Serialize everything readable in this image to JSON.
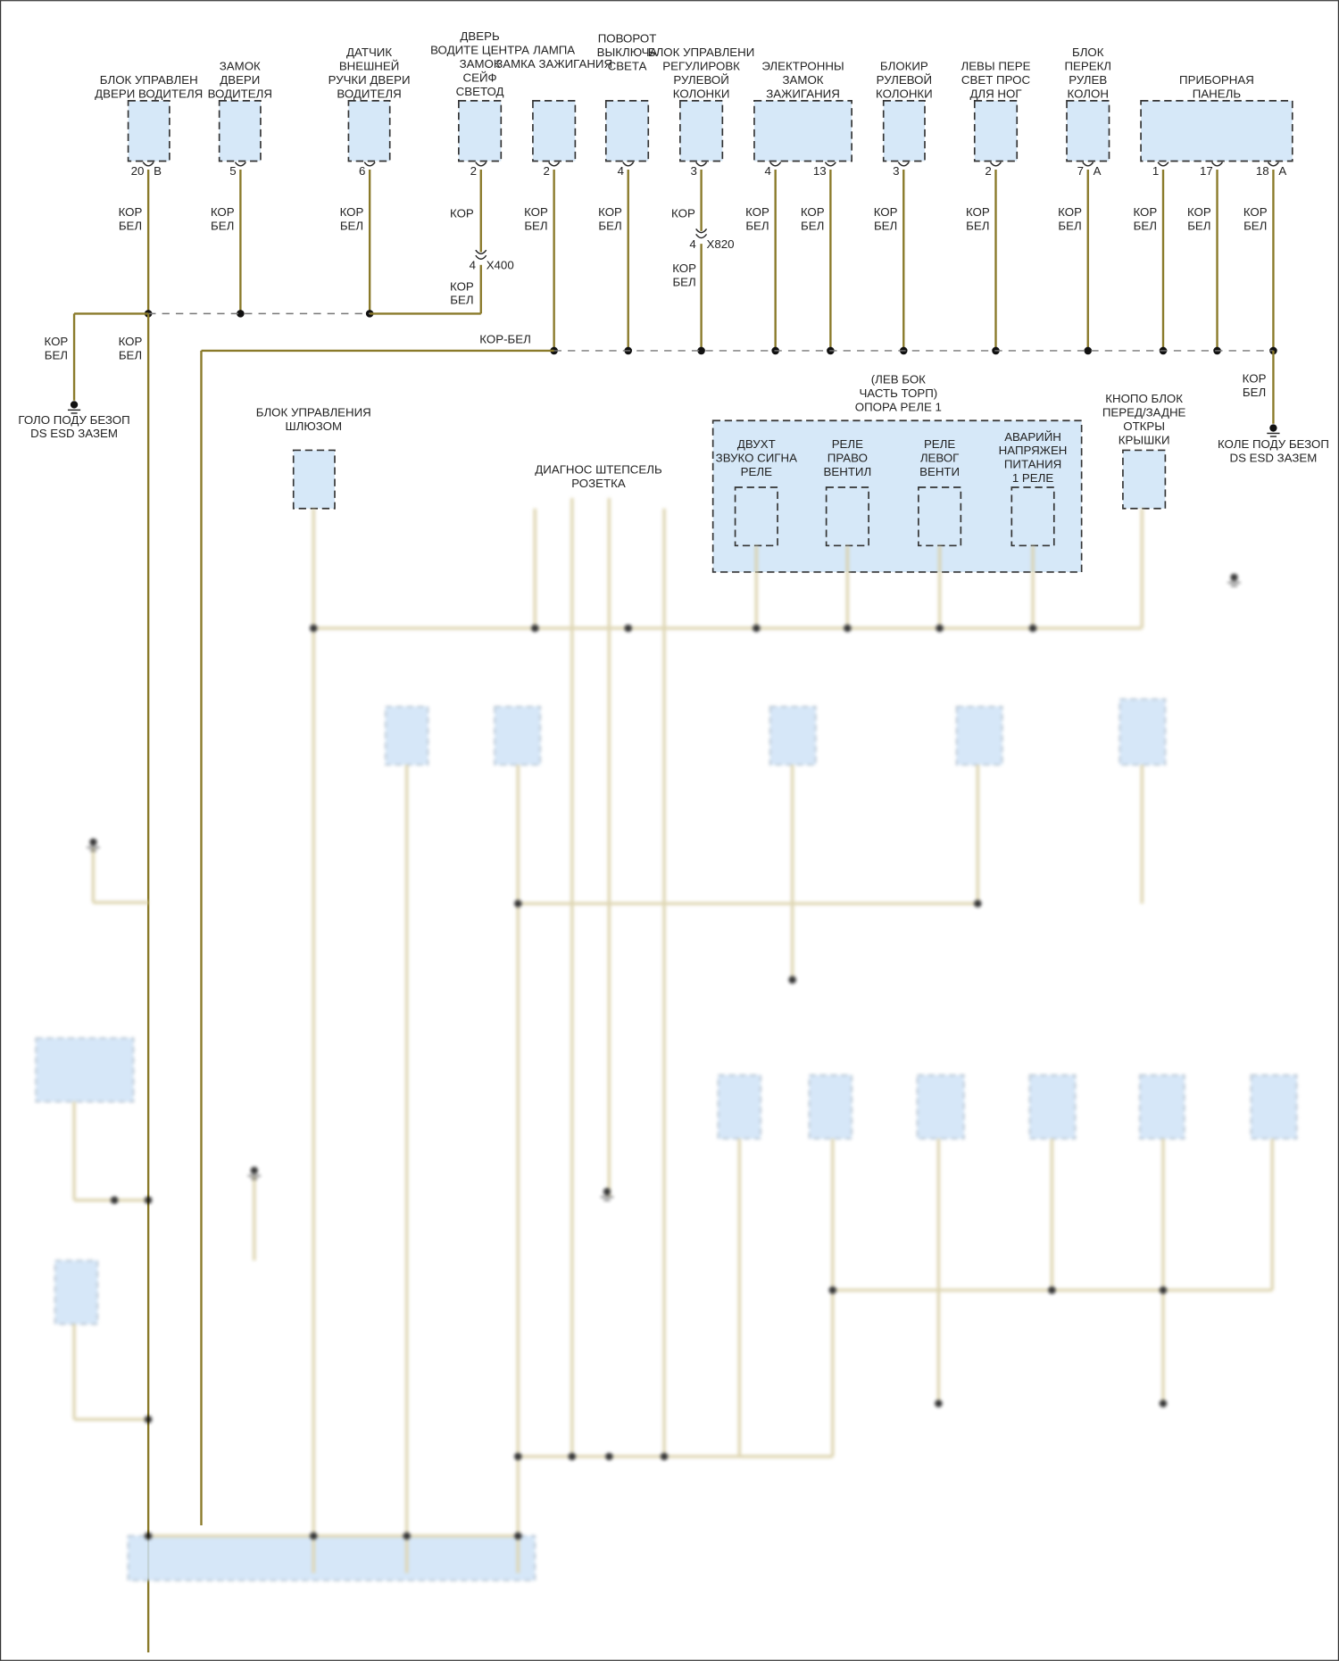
{
  "colors": {
    "wire": "#8a7a2a",
    "component_fill": "#d6e8f8",
    "background": "#ffffff"
  },
  "top_components": [
    {
      "label": [
        "БЛОК УПРАВЛЕН",
        "ДВЕРИ ВОДИТЕЛЯ"
      ],
      "pins": [
        {
          "num": "20",
          "conn": "B"
        }
      ]
    },
    {
      "label": [
        "ЗАМОК",
        "ДВЕРИ",
        "ВОДИТЕЛЯ"
      ],
      "pins": [
        {
          "num": "5",
          "conn": ""
        }
      ]
    },
    {
      "label": [
        "ДАТЧИК",
        "ВНЕШНЕЙ",
        "РУЧКИ ДВЕРИ",
        "ВОДИТЕЛЯ"
      ],
      "pins": [
        {
          "num": "6",
          "conn": ""
        }
      ]
    },
    {
      "label": [
        "ДВЕРЬ",
        "ВОДИТЕ ЦЕНТРА",
        "ЗАМОК",
        "СЕЙФ",
        "СВЕТОД"
      ],
      "pins": [
        {
          "num": "2",
          "conn": ""
        }
      ]
    },
    {
      "label": [
        "ЛАМПА",
        "ЗАМКА ЗАЖИГАНИЯ"
      ],
      "pins": [
        {
          "num": "2",
          "conn": ""
        }
      ]
    },
    {
      "label": [
        "ПОВОРОТ",
        "ВЫКЛЮЧА",
        "СВЕТА"
      ],
      "pins": [
        {
          "num": "4",
          "conn": ""
        }
      ]
    },
    {
      "label": [
        "БЛОК УПРАВЛЕНИ",
        "РЕГУЛИРОВК",
        "РУЛЕВОЙ",
        "КОЛОНКИ"
      ],
      "pins": [
        {
          "num": "3",
          "conn": ""
        }
      ]
    },
    {
      "label": [
        "ЭЛЕКТРОННЫ",
        "ЗАМОК",
        "ЗАЖИГАНИЯ"
      ],
      "pins": [
        {
          "num": "4",
          "conn": ""
        },
        {
          "num": "13",
          "conn": ""
        }
      ]
    },
    {
      "label": [
        "БЛОКИР",
        "РУЛЕВОЙ",
        "КОЛОНКИ"
      ],
      "pins": [
        {
          "num": "3",
          "conn": ""
        }
      ]
    },
    {
      "label": [
        "ЛЕВЫ ПЕРЕ",
        "СВЕТ ПРОС",
        "ДЛЯ НОГ"
      ],
      "pins": [
        {
          "num": "2",
          "conn": ""
        }
      ]
    },
    {
      "label": [
        "БЛОК",
        "ПЕРЕКЛ",
        "РУЛЕВ",
        "КОЛОН"
      ],
      "pins": [
        {
          "num": "7",
          "conn": "A"
        }
      ]
    },
    {
      "label": [
        "ПРИБОРНАЯ",
        "ПАНЕЛЬ"
      ],
      "pins": [
        {
          "num": "1",
          "conn": ""
        },
        {
          "num": "17",
          "conn": ""
        },
        {
          "num": "18",
          "conn": "A"
        }
      ]
    }
  ],
  "wire_color_label": [
    "КОР",
    "БЕЛ"
  ],
  "wire_color_single": "КОР",
  "splice_label": "КОР-БЕЛ",
  "connectors": [
    {
      "pin": "4",
      "name": "X400"
    },
    {
      "pin": "4",
      "name": "X820"
    }
  ],
  "grounds": [
    {
      "label": [
        "ГОЛО ПОДУ БЕЗОП",
        "DS ESD ЗАЗЕМ"
      ]
    },
    {
      "label": [
        "КОЛЕ ПОДУ БЕЗОП",
        "DS ESD ЗАЗЕМ"
      ]
    }
  ],
  "middle": {
    "gateway": [
      "БЛОК УПРАВЛЕНИЯ",
      "ШЛЮЗОМ"
    ],
    "diag": [
      "ДИАГНОС ШТЕПСЕЛЬ",
      "РОЗЕТКА"
    ],
    "relay_block": [
      "(ЛЕВ БОК",
      "ЧАСТЬ ТОРП)",
      "ОПОРА РЕЛЕ 1"
    ],
    "relays": [
      [
        "ДВУХТ",
        "ЗВУКО СИГНА",
        "РЕЛЕ"
      ],
      [
        "РЕЛЕ",
        "ПРАВО",
        "ВЕНТИЛ"
      ],
      [
        "РЕЛЕ",
        "ЛЕВОГ",
        "ВЕНТИ"
      ],
      [
        "АВАРИЙН",
        "НАПРЯЖЕН",
        "ПИТАНИЯ",
        "1 РЕЛЕ"
      ]
    ],
    "trunk_button": [
      "КНОПО БЛОК",
      "ПЕРЕД/ЗАДНЕ",
      "ОТКРЫ",
      "КРЫШКИ"
    ]
  }
}
